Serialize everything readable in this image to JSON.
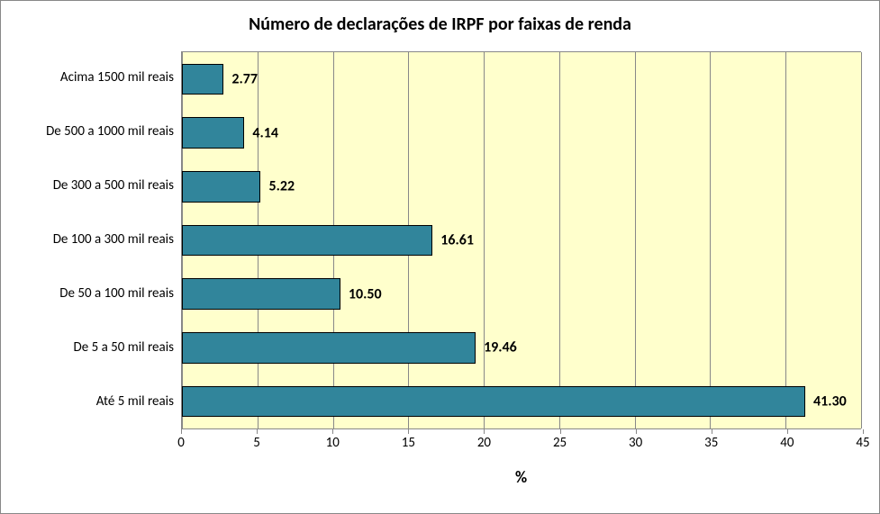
{
  "chart": {
    "type": "bar-horizontal",
    "title": "Número de declarações de IRPF por faixas de renda",
    "title_fontsize": 20,
    "title_fontweight": "bold",
    "background_color": "#ffffff",
    "plot_background_color": "#ffffcc",
    "grid_color": "#888888",
    "bar_color": "#31859b",
    "bar_border_color": "#000000",
    "value_label_fontsize": 16,
    "value_label_fontweight": "bold",
    "axis_label_fontsize": 15,
    "xlabel": "%",
    "xlabel_fontsize": 18,
    "xlabel_fontweight": "bold",
    "xlim": [
      0,
      45
    ],
    "xtick_step": 5,
    "xticks": [
      "0",
      "5",
      "10",
      "15",
      "20",
      "25",
      "30",
      "35",
      "40",
      "45"
    ],
    "categories": [
      "Acima 1500 mil reais",
      "De 500 a 1000 mil reais",
      "De 300 a 500 mil reais",
      "De 100 a 300 mil reais",
      "De 50 a 100 mil reais",
      "De 5 a 50 mil reais",
      "Até 5 mil reais"
    ],
    "values": [
      2.77,
      4.14,
      5.22,
      16.61,
      10.5,
      19.46,
      41.3
    ],
    "value_labels": [
      "2.77",
      "4.14",
      "5.22",
      "16.61",
      "10.50",
      "19.46",
      "41.30"
    ],
    "bar_height_pct": 58
  }
}
